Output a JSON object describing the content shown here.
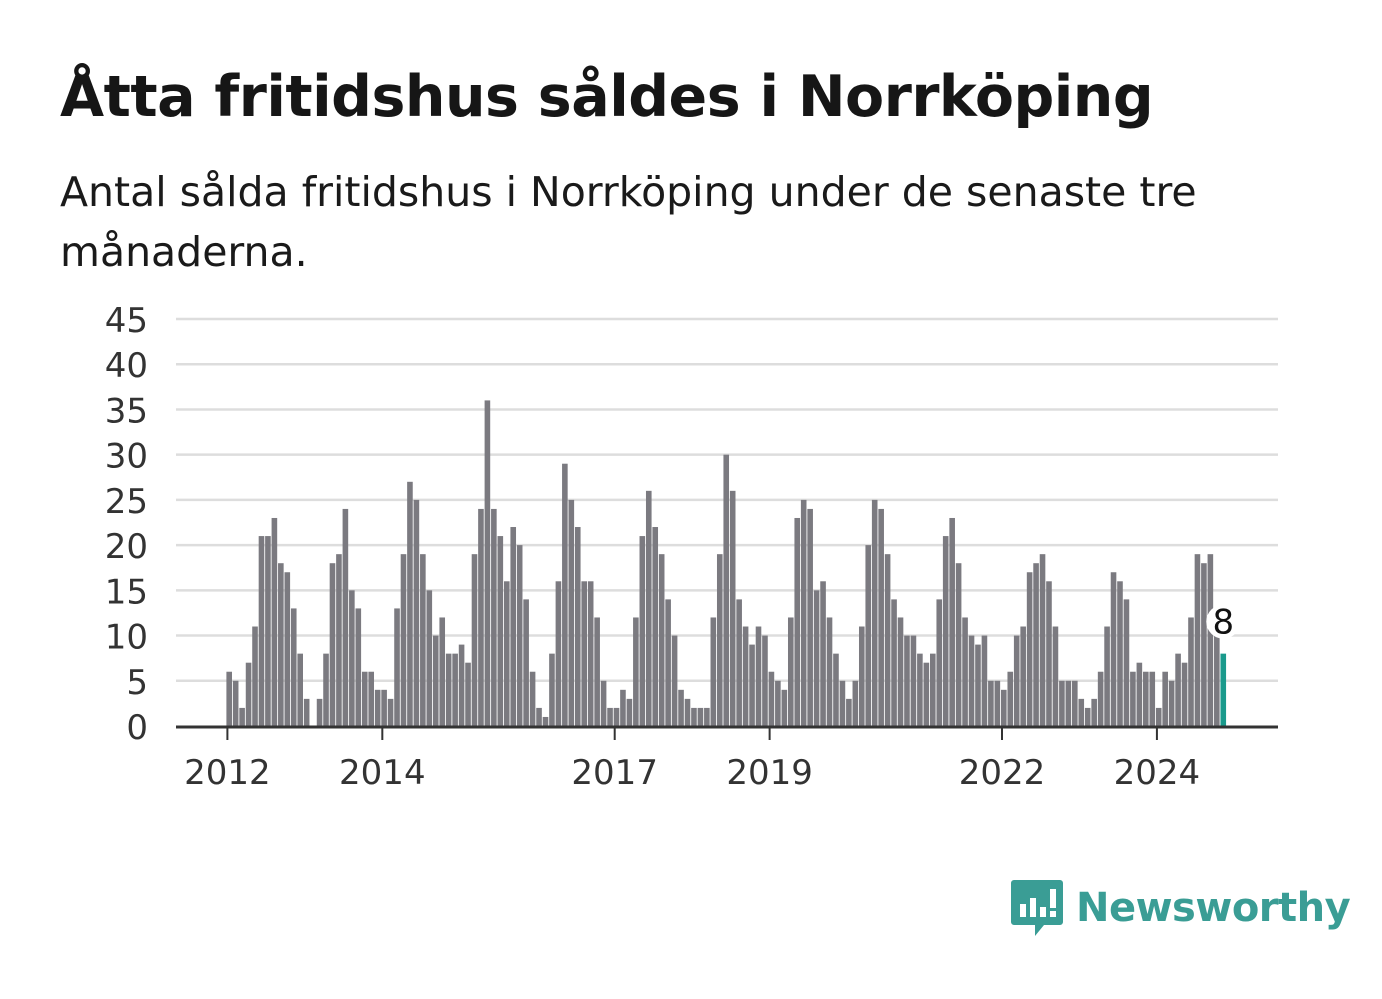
{
  "title": "Åtta fritidshus såldes i Norrköping",
  "subtitle": "Antal sålda fritidshus i Norrköping under de senaste tre månaderna.",
  "brand": {
    "name": "Newsworthy",
    "color": "#3a9d95",
    "icon": "newsworthy-logo-icon"
  },
  "chart_data": {
    "type": "bar",
    "ylim": [
      0,
      45
    ],
    "yticks": [
      0,
      5,
      10,
      15,
      20,
      25,
      30,
      35,
      40,
      45
    ],
    "xticks": [
      "2012",
      "2014",
      "2017",
      "2019",
      "2022",
      "2024"
    ],
    "grid": true,
    "bar_color": "#7b7a80",
    "highlight_color": "#1a9a8c",
    "highlight_label": "8",
    "values": [
      6,
      5,
      2,
      7,
      11,
      21,
      21,
      23,
      18,
      17,
      13,
      8,
      3,
      0,
      3,
      8,
      18,
      19,
      24,
      15,
      13,
      6,
      6,
      4,
      4,
      3,
      13,
      19,
      27,
      25,
      19,
      15,
      10,
      12,
      8,
      8,
      9,
      7,
      19,
      24,
      36,
      24,
      21,
      16,
      22,
      20,
      14,
      6,
      2,
      1,
      8,
      16,
      29,
      25,
      22,
      16,
      16,
      12,
      5,
      2,
      2,
      4,
      3,
      12,
      21,
      26,
      22,
      19,
      14,
      10,
      4,
      3,
      2,
      2,
      2,
      12,
      19,
      30,
      26,
      14,
      11,
      9,
      11,
      10,
      6,
      5,
      4,
      12,
      23,
      25,
      24,
      15,
      16,
      12,
      8,
      5,
      3,
      5,
      11,
      20,
      25,
      24,
      19,
      14,
      12,
      10,
      10,
      8,
      7,
      8,
      14,
      21,
      23,
      18,
      12,
      10,
      9,
      10,
      5,
      5,
      4,
      6,
      10,
      11,
      17,
      18,
      19,
      16,
      11,
      5,
      5,
      5,
      3,
      2,
      3,
      6,
      11,
      17,
      16,
      14,
      6,
      7,
      6,
      6,
      2,
      6,
      5,
      8,
      7,
      12,
      19,
      18,
      19,
      10,
      8
    ]
  }
}
